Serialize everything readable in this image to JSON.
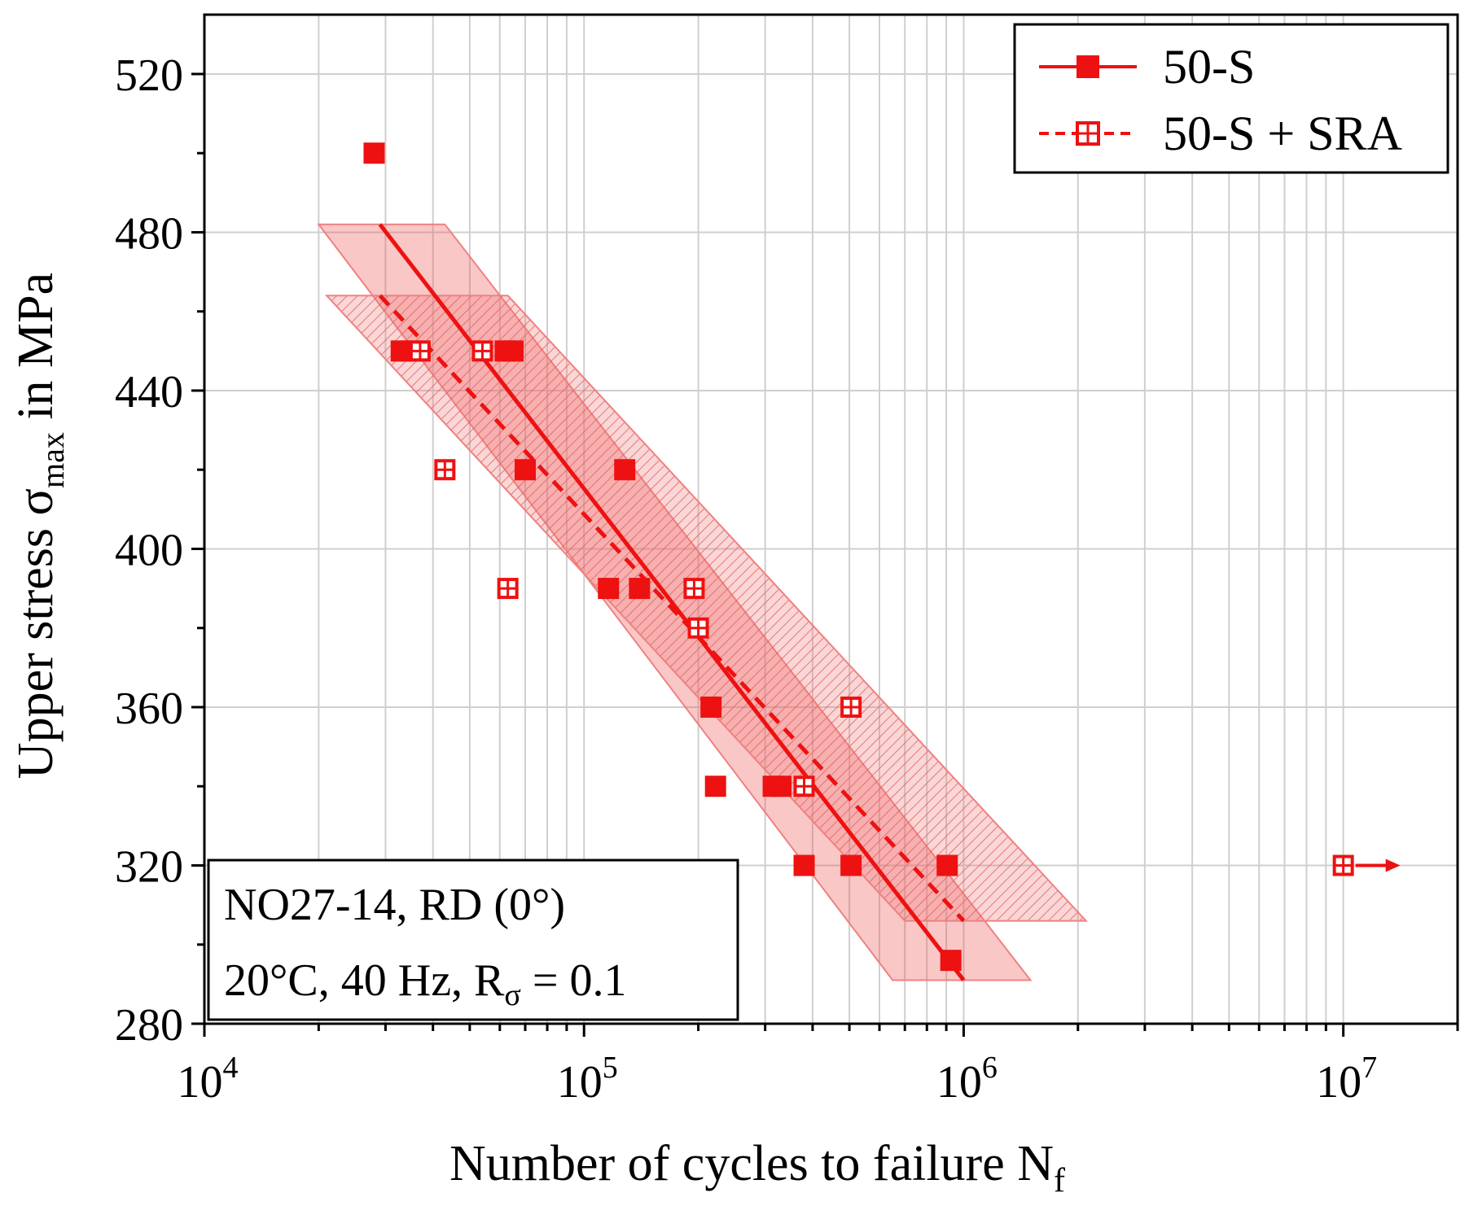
{
  "chart_data": {
    "type": "scatter",
    "xscale": "log",
    "xlim": [
      10000,
      20000000
    ],
    "ylim": [
      280,
      535
    ],
    "xlabel": "Number of cycles to failure N",
    "xlabel_sub": "f",
    "ylabel_prefix": "Upper stress σ",
    "ylabel_sub": "max",
    "ylabel_suffix": " in MPa",
    "x_ticks": [
      {
        "value": 10000,
        "base": "10",
        "exp": "4"
      },
      {
        "value": 100000,
        "base": "10",
        "exp": "5"
      },
      {
        "value": 1000000,
        "base": "10",
        "exp": "6"
      },
      {
        "value": 10000000,
        "base": "10",
        "exp": "7"
      }
    ],
    "y_ticks": [
      {
        "value": 280,
        "label": "280"
      },
      {
        "value": 320,
        "label": "320"
      },
      {
        "value": 360,
        "label": "360"
      },
      {
        "value": 400,
        "label": "400"
      },
      {
        "value": 440,
        "label": "440"
      },
      {
        "value": 480,
        "label": "480"
      },
      {
        "value": 520,
        "label": "520"
      }
    ],
    "y_minor_ticks": [
      300,
      340,
      380,
      420,
      460,
      500
    ],
    "grid": true,
    "legend_position": "top-right",
    "series": [
      {
        "name": "50-S",
        "marker": "filled-square",
        "color": "#ee1111",
        "line_style": "solid",
        "points": [
          {
            "x": 28000,
            "y": 500
          },
          {
            "x": 33000,
            "y": 450
          },
          {
            "x": 35000,
            "y": 450
          },
          {
            "x": 62000,
            "y": 450
          },
          {
            "x": 65000,
            "y": 450
          },
          {
            "x": 70000,
            "y": 420
          },
          {
            "x": 128000,
            "y": 420
          },
          {
            "x": 116000,
            "y": 390
          },
          {
            "x": 140000,
            "y": 390
          },
          {
            "x": 216000,
            "y": 360
          },
          {
            "x": 222000,
            "y": 340
          },
          {
            "x": 315000,
            "y": 340
          },
          {
            "x": 330000,
            "y": 340
          },
          {
            "x": 380000,
            "y": 320
          },
          {
            "x": 505000,
            "y": 320
          },
          {
            "x": 905000,
            "y": 320
          },
          {
            "x": 925000,
            "y": 296
          }
        ],
        "fit": {
          "x1": 29000,
          "y1": 482,
          "x2": 1000000,
          "y2": 291
        }
      },
      {
        "name": "50-S + SRA",
        "marker": "hollow-square-cross",
        "color": "#ee1111",
        "line_style": "dashed",
        "points": [
          {
            "x": 37000,
            "y": 450
          },
          {
            "x": 54000,
            "y": 450
          },
          {
            "x": 43000,
            "y": 420
          },
          {
            "x": 63000,
            "y": 390
          },
          {
            "x": 195000,
            "y": 390
          },
          {
            "x": 200000,
            "y": 380
          },
          {
            "x": 505000,
            "y": 360
          },
          {
            "x": 380000,
            "y": 340
          },
          {
            "x": 10000000,
            "y": 320,
            "runout": true
          }
        ],
        "fit": {
          "x1": 29000,
          "y1": 464,
          "x2": 1000000,
          "y2": 306
        }
      }
    ],
    "scatter_bands": [
      {
        "series": "50-S",
        "style": "solid-fill",
        "polygon": [
          {
            "x": 20000,
            "y": 482
          },
          {
            "x": 43000,
            "y": 482
          },
          {
            "x": 1500000,
            "y": 291
          },
          {
            "x": 650000,
            "y": 291
          }
        ]
      },
      {
        "series": "50-S + SRA",
        "style": "hatched",
        "polygon": [
          {
            "x": 21000,
            "y": 464
          },
          {
            "x": 63000,
            "y": 464
          },
          {
            "x": 2100000,
            "y": 306
          },
          {
            "x": 700000,
            "y": 306
          }
        ]
      }
    ],
    "annotation": {
      "line1": "NO27-14, RD (0°)",
      "line2_prefix": "20°C, 40 Hz, R",
      "line2_sub": "σ",
      "line2_suffix": " = 0.1"
    }
  }
}
